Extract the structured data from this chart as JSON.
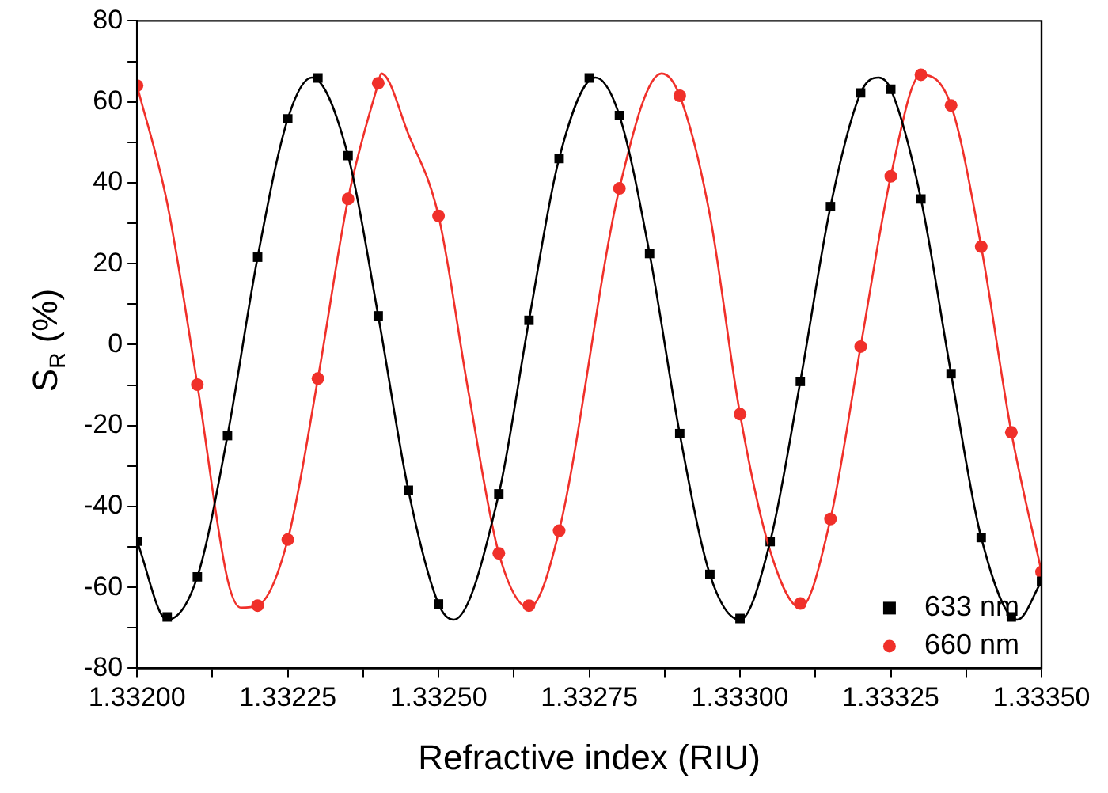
{
  "chart_data": {
    "type": "scatter",
    "xlabel": "Refractive index (RIU)",
    "ylabel": "S$_{R}$ (%)",
    "xlim": [
      1.332,
      1.3335
    ],
    "ylim": [
      -80,
      80
    ],
    "xticks": [
      {
        "value": 1.332,
        "label": "1.33200"
      },
      {
        "value": 1.332125,
        "label": null
      },
      {
        "value": 1.33225,
        "label": "1.33225"
      },
      {
        "value": 1.332375,
        "label": null
      },
      {
        "value": 1.3325,
        "label": "1.33250"
      },
      {
        "value": 1.332625,
        "label": null
      },
      {
        "value": 1.33275,
        "label": "1.33275"
      },
      {
        "value": 1.332875,
        "label": null
      },
      {
        "value": 1.333,
        "label": "1.33300"
      },
      {
        "value": 1.333125,
        "label": null
      },
      {
        "value": 1.33325,
        "label": "1.33325"
      },
      {
        "value": 1.333375,
        "label": null
      },
      {
        "value": 1.3335,
        "label": "1.33350"
      }
    ],
    "yticks": [
      -80,
      {
        "value": -70,
        "label": null
      },
      -60,
      {
        "value": -50,
        "label": null
      },
      -40,
      {
        "value": -30,
        "label": null
      },
      -20,
      {
        "value": -10,
        "label": null
      },
      0,
      {
        "value": 10,
        "label": null
      },
      20,
      {
        "value": 30,
        "label": null
      },
      40,
      {
        "value": 50,
        "label": null
      },
      60,
      {
        "value": 70,
        "label": null
      },
      80
    ],
    "grid": false,
    "legend": "bottom right",
    "series": [
      {
        "type": "line",
        "color": "#000000",
        "marker": "none",
        "x": [
          1.332,
          1.33205,
          1.3321,
          1.33215,
          1.3322,
          1.33225,
          1.33229,
          1.33235,
          1.3324,
          1.33245,
          1.3325,
          1.332525,
          1.3326,
          1.33265,
          1.3327,
          1.33276,
          1.3328,
          1.33285,
          1.3329,
          1.33295,
          1.333,
          1.33305,
          1.3331,
          1.33315,
          1.3332,
          1.33323,
          1.33325,
          1.3333,
          1.33335,
          1.3334,
          1.33346,
          1.3335
        ],
        "values": [
          -48.6,
          -68,
          -57.4,
          -22.5,
          21.6,
          55.8,
          66,
          46.7,
          7.1,
          -36,
          -64.1,
          -68,
          -36.9,
          6,
          46,
          66,
          56.6,
          22.5,
          -22,
          -56.8,
          -68,
          -48.7,
          -9.1,
          34.1,
          62.2,
          66,
          63.1,
          36,
          -7.2,
          -47.7,
          -68,
          -58.5
        ]
      },
      {
        "type": "line",
        "color": "#f0302a",
        "marker": "none",
        "x": [
          1.332,
          1.33205,
          1.3321,
          1.33215,
          1.332172,
          1.3322,
          1.33225,
          1.3323,
          1.33235,
          1.3324,
          1.332405,
          1.33245,
          1.3325,
          1.33255,
          1.3326,
          1.33265,
          1.3327,
          1.3328,
          1.33287,
          1.3329,
          1.33295,
          1.333,
          1.33305,
          1.3331,
          1.33315,
          1.3332,
          1.33325,
          1.3333,
          1.33335,
          1.3334,
          1.33345,
          1.3335
        ],
        "values": [
          64,
          35,
          -9.9,
          -58,
          -65,
          -64.5,
          -48.2,
          -8.4,
          36,
          64.6,
          67,
          52,
          31.8,
          -12,
          -51.6,
          -65,
          -46,
          38.6,
          67,
          61.5,
          32,
          -17.2,
          -51,
          -65,
          -43.1,
          -0.5,
          41.6,
          66.7,
          59.1,
          24.2,
          -21.7,
          -56.2
        ]
      },
      {
        "name": "633 nm",
        "color": "#000000",
        "marker": "square",
        "x": [
          1.332,
          1.33205,
          1.3321,
          1.33215,
          1.3322,
          1.33225,
          1.3323,
          1.33235,
          1.3324,
          1.33245,
          1.3325,
          1.3326,
          1.33265,
          1.3327,
          1.33275,
          1.3328,
          1.33285,
          1.3329,
          1.33295,
          1.333,
          1.33305,
          1.3331,
          1.33315,
          1.3332,
          1.33325,
          1.3333,
          1.33335,
          1.3334,
          1.33345,
          1.3335
        ],
        "values": [
          -48.6,
          -67.3,
          -57.4,
          -22.5,
          21.6,
          55.8,
          65.9,
          46.7,
          7.1,
          -36,
          -64.1,
          -36.9,
          6,
          46,
          65.9,
          56.6,
          22.5,
          -22,
          -56.8,
          -67.7,
          -48.7,
          -9.1,
          34.1,
          62.2,
          63.1,
          36,
          -7.2,
          -47.7,
          -67.3,
          -58.5
        ]
      },
      {
        "name": "660 nm",
        "color": "#f0302a",
        "marker": "circle",
        "x": [
          1.332,
          1.3321,
          1.3322,
          1.33225,
          1.3323,
          1.33235,
          1.3324,
          1.3325,
          1.3326,
          1.33265,
          1.3327,
          1.3328,
          1.3329,
          1.333,
          1.3331,
          1.33315,
          1.3332,
          1.33325,
          1.3333,
          1.33335,
          1.3334,
          1.33345,
          1.3335
        ],
        "values": [
          64,
          -9.9,
          -64.5,
          -48.2,
          -8.4,
          36,
          64.6,
          31.8,
          -51.6,
          -64.5,
          -46,
          38.6,
          61.5,
          -17.2,
          -64,
          -43.1,
          -0.5,
          41.6,
          66.7,
          59.1,
          24.2,
          -21.7,
          -56.2
        ]
      }
    ]
  }
}
